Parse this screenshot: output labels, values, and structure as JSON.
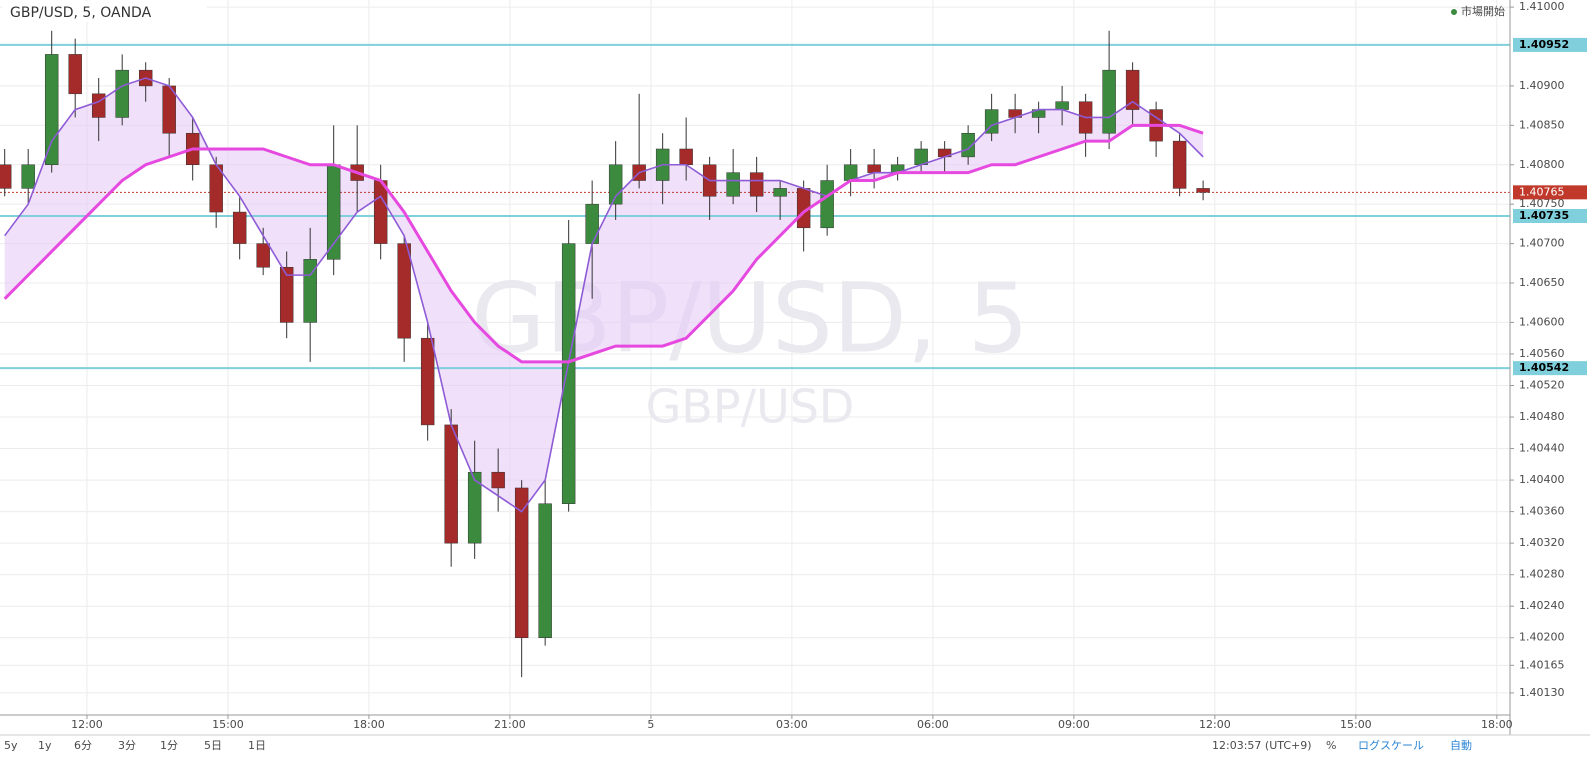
{
  "chart_data": {
    "type": "candlestick",
    "title": "GBP/USD, 5, OANDA",
    "watermark": "GBP/USD, 5",
    "watermark_sub": "GBP/USD",
    "status": "市場開始",
    "x": [
      10.25,
      10.75,
      11.25,
      11.75,
      12.25,
      12.75,
      13.25,
      13.75,
      14.25,
      14.75,
      15.25,
      15.75,
      16.25,
      16.75,
      17.25,
      17.75,
      18.25,
      18.75,
      19.25,
      19.75,
      20.25,
      20.75,
      21.25,
      21.75,
      22.25,
      22.75,
      23.25,
      23.75,
      24.25,
      24.75,
      25.25,
      25.75,
      26.25,
      26.75,
      27.25,
      27.75,
      28.25,
      28.75,
      29.25,
      29.75,
      30.25,
      30.75,
      31.25,
      31.75,
      32.25,
      32.75,
      33.25,
      33.75,
      34.25,
      34.75,
      35.25,
      35.75
    ],
    "open": [
      1.408,
      1.4077,
      1.408,
      1.4094,
      1.4089,
      1.4086,
      1.4092,
      1.409,
      1.4084,
      1.408,
      1.4074,
      1.407,
      1.4067,
      1.406,
      1.4068,
      1.408,
      1.4078,
      1.407,
      1.4058,
      1.4047,
      1.4032,
      1.4041,
      1.4039,
      1.402,
      1.4037,
      1.407,
      1.4075,
      1.408,
      1.4078,
      1.4082,
      1.408,
      1.4076,
      1.4079,
      1.4076,
      1.4077,
      1.4072,
      1.4078,
      1.408,
      1.4079,
      1.408,
      1.4082,
      1.4081,
      1.4084,
      1.4087,
      1.4086,
      1.4087,
      1.4088,
      1.4084,
      1.4092,
      1.4087,
      1.4083,
      1.4077
    ],
    "high": [
      1.4082,
      1.4082,
      1.4097,
      1.4096,
      1.4091,
      1.4094,
      1.4093,
      1.4091,
      1.4086,
      1.4081,
      1.4076,
      1.4072,
      1.4069,
      1.4072,
      1.4085,
      1.4085,
      1.408,
      1.4071,
      1.406,
      1.4049,
      1.4045,
      1.4044,
      1.404,
      1.404,
      1.4073,
      1.4078,
      1.4083,
      1.4089,
      1.4084,
      1.4086,
      1.4081,
      1.4082,
      1.4081,
      1.4078,
      1.4078,
      1.408,
      1.4082,
      1.4082,
      1.4081,
      1.4083,
      1.4083,
      1.4085,
      1.4089,
      1.4089,
      1.4088,
      1.409,
      1.4089,
      1.4097,
      1.4093,
      1.4088,
      1.4084,
      1.4078
    ],
    "low": [
      1.4076,
      1.4075,
      1.4079,
      1.4086,
      1.4083,
      1.4085,
      1.4088,
      1.4081,
      1.4078,
      1.4072,
      1.4068,
      1.4066,
      1.4058,
      1.4055,
      1.4066,
      1.4074,
      1.4068,
      1.4055,
      1.4045,
      1.4029,
      1.403,
      1.4036,
      1.4015,
      1.4019,
      1.4036,
      1.4063,
      1.4073,
      1.4077,
      1.4075,
      1.4078,
      1.4073,
      1.4075,
      1.4074,
      1.4073,
      1.4069,
      1.4071,
      1.4076,
      1.4077,
      1.4078,
      1.4079,
      1.4079,
      1.408,
      1.4083,
      1.4084,
      1.4084,
      1.4085,
      1.4081,
      1.4082,
      1.4085,
      1.4081,
      1.4076,
      1.40755
    ],
    "close": [
      1.4077,
      1.408,
      1.4094,
      1.4089,
      1.4086,
      1.4092,
      1.409,
      1.4084,
      1.408,
      1.4074,
      1.407,
      1.4067,
      1.406,
      1.4068,
      1.408,
      1.4078,
      1.407,
      1.4058,
      1.4047,
      1.4032,
      1.4041,
      1.4039,
      1.402,
      1.4037,
      1.407,
      1.4075,
      1.408,
      1.4078,
      1.4082,
      1.408,
      1.4076,
      1.4079,
      1.4076,
      1.4077,
      1.4072,
      1.4078,
      1.408,
      1.4079,
      1.408,
      1.4082,
      1.4081,
      1.4084,
      1.4087,
      1.4086,
      1.4087,
      1.4088,
      1.4084,
      1.4092,
      1.4087,
      1.4083,
      1.4077,
      1.40765
    ],
    "up_color": "#3b8a3e",
    "down_color": "#a52a2a",
    "series": [
      {
        "color": "#8e5bd6",
        "values": [
          1.4071,
          1.4075,
          1.4083,
          1.4087,
          1.4088,
          1.409,
          1.4091,
          1.409,
          1.4086,
          1.408,
          1.4076,
          1.4071,
          1.4066,
          1.4066,
          1.407,
          1.4074,
          1.4076,
          1.4071,
          1.406,
          1.4047,
          1.404,
          1.4038,
          1.4036,
          1.404,
          1.4055,
          1.407,
          1.4076,
          1.4079,
          1.408,
          1.408,
          1.4078,
          1.4078,
          1.4078,
          1.4078,
          1.4077,
          1.4076,
          1.4078,
          1.4079,
          1.4079,
          1.408,
          1.4081,
          1.4082,
          1.4085,
          1.4086,
          1.4087,
          1.4087,
          1.4086,
          1.4086,
          1.4088,
          1.4086,
          1.4084,
          1.4081
        ]
      },
      {
        "color": "#e649e0",
        "values": [
          1.4063,
          1.4066,
          1.4069,
          1.4072,
          1.4075,
          1.4078,
          1.408,
          1.4081,
          1.4082,
          1.4082,
          1.4082,
          1.4082,
          1.4081,
          1.408,
          1.408,
          1.4079,
          1.4078,
          1.4074,
          1.4069,
          1.4064,
          1.406,
          1.4057,
          1.4055,
          1.4055,
          1.4055,
          1.4056,
          1.4057,
          1.4057,
          1.4057,
          1.4058,
          1.4061,
          1.4064,
          1.4068,
          1.4071,
          1.4074,
          1.4076,
          1.4078,
          1.4078,
          1.4079,
          1.4079,
          1.4079,
          1.4079,
          1.408,
          1.408,
          1.4081,
          1.4082,
          1.4083,
          1.4083,
          1.4085,
          1.4085,
          1.4085,
          1.4084
        ]
      }
    ],
    "band_color": "#e6ccf7",
    "xlim": [
      10.15,
      42.28
    ],
    "xticks": [
      {
        "value": 12,
        "label": "12:00"
      },
      {
        "value": 15,
        "label": "15:00"
      },
      {
        "value": 18,
        "label": "18:00"
      },
      {
        "value": 21,
        "label": "21:00"
      },
      {
        "value": 24,
        "label": "5"
      },
      {
        "value": 27,
        "label": "03:00"
      },
      {
        "value": 30,
        "label": "06:00"
      },
      {
        "value": 33,
        "label": "09:00"
      },
      {
        "value": 36,
        "label": "12:00"
      },
      {
        "value": 39,
        "label": "15:00"
      },
      {
        "value": 42,
        "label": "18:00"
      }
    ],
    "ylim": [
      1.40102,
      1.41009
    ],
    "yticks": [
      {
        "value": 1.41,
        "label": "1.41000"
      },
      {
        "value": 1.409,
        "label": "1.40900"
      },
      {
        "value": 1.4085,
        "label": "1.40850"
      },
      {
        "value": 1.408,
        "label": "1.40800"
      },
      {
        "value": 1.4075,
        "label": "1.40750"
      },
      {
        "value": 1.407,
        "label": "1.40700"
      },
      {
        "value": 1.4065,
        "label": "1.40650"
      },
      {
        "value": 1.406,
        "label": "1.40600"
      },
      {
        "value": 1.4056,
        "label": "1.40560"
      },
      {
        "value": 1.4052,
        "label": "1.40520"
      },
      {
        "value": 1.4048,
        "label": "1.40480"
      },
      {
        "value": 1.4044,
        "label": "1.40440"
      },
      {
        "value": 1.404,
        "label": "1.40400"
      },
      {
        "value": 1.4036,
        "label": "1.40360"
      },
      {
        "value": 1.4032,
        "label": "1.40320"
      },
      {
        "value": 1.4028,
        "label": "1.40280"
      },
      {
        "value": 1.4024,
        "label": "1.40240"
      },
      {
        "value": 1.402,
        "label": "1.40200"
      },
      {
        "value": 1.40165,
        "label": "1.40165"
      },
      {
        "value": 1.4013,
        "label": "1.40130"
      }
    ],
    "hlines": [
      1.40952,
      1.40735,
      1.40542
    ],
    "hline_color": "#7fcfdc",
    "last_price": 1.40765,
    "last_color": "#c0392b",
    "grid": true
  },
  "toolbar": {
    "left": [
      "5y",
      "1y",
      "6分",
      "3分",
      "1分",
      "5日",
      "1日"
    ],
    "clock": "12:03:57 (UTC+9)",
    "percent": "%",
    "log": "ログスケール",
    "auto": "自動"
  }
}
